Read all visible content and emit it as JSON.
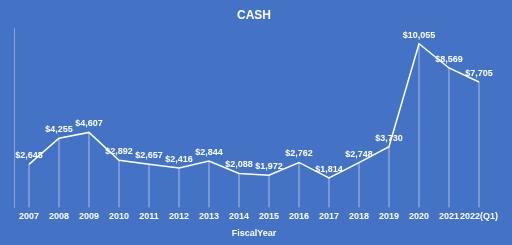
{
  "chart_data": {
    "type": "line",
    "title": "CASH",
    "x_label": "FiscalYear",
    "categories": [
      "2007",
      "2008",
      "2009",
      "2010",
      "2011",
      "2012",
      "2013",
      "2014",
      "2015",
      "2016",
      "2017",
      "2018",
      "2019",
      "2020",
      "2021",
      "2022(Q1)"
    ],
    "values": [
      2648,
      4255,
      4607,
      2892,
      2657,
      2416,
      2844,
      2088,
      1972,
      2762,
      1814,
      2748,
      3730,
      10055,
      8569,
      7705
    ],
    "value_labels": [
      "$2,648",
      "$4,255",
      "$4,607",
      "$2,892",
      "$2,657",
      "$2,416",
      "$2,844",
      "$2,088",
      "$1,972",
      "$2,762",
      "$1,814",
      "$2,748",
      "$3,730",
      "$10,055",
      "$8,569",
      "$7,705"
    ],
    "color": "#ffffff",
    "marker": "none",
    "line_style": "solid",
    "ylim": [
      0,
      11000
    ],
    "grid": false,
    "data_labels": true,
    "tick_labels": "x"
  }
}
